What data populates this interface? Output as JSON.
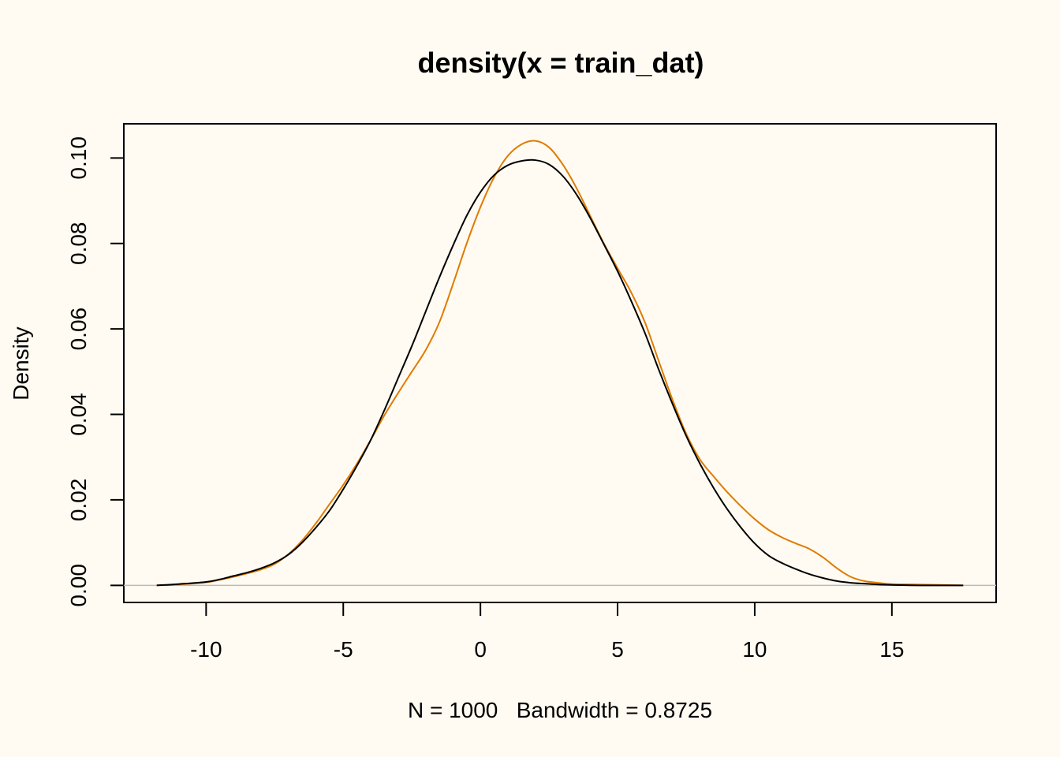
{
  "chart_data": {
    "type": "line",
    "title": "density(x = train_dat)",
    "xlabel": "N = 1000   Bandwidth = 0.8725",
    "ylabel": "Density",
    "xlim": [
      -13,
      18.8
    ],
    "ylim": [
      -0.004,
      0.108
    ],
    "x_ticks": [
      -10,
      -5,
      0,
      5,
      10,
      15
    ],
    "x_tick_labels": [
      "-10",
      "-5",
      "0",
      "5",
      "10",
      "15"
    ],
    "y_ticks": [
      0.0,
      0.02,
      0.04,
      0.06,
      0.08,
      0.1
    ],
    "y_tick_labels": [
      "0.00",
      "0.02",
      "0.04",
      "0.06",
      "0.08",
      "0.10"
    ],
    "zero_line": true,
    "grid": false,
    "series": [
      {
        "color": "#e07b00",
        "x": [
          -11.8,
          -11,
          -10,
          -9.5,
          -9,
          -8.5,
          -8,
          -7.5,
          -7,
          -6.5,
          -6,
          -5.5,
          -5,
          -4.5,
          -4,
          -3.5,
          -3,
          -2.5,
          -2,
          -1.5,
          -1,
          -0.5,
          0,
          0.5,
          1,
          1.5,
          2,
          2.5,
          3,
          3.5,
          4,
          4.5,
          5,
          5.5,
          6,
          6.5,
          7,
          7.5,
          8,
          8.5,
          9,
          9.5,
          10,
          10.5,
          11,
          11.5,
          12,
          12.5,
          13,
          13.5,
          14,
          14.5,
          15,
          16,
          17.6
        ],
        "y": [
          0.0,
          0.0002,
          0.0007,
          0.0013,
          0.002,
          0.0028,
          0.0037,
          0.005,
          0.0073,
          0.0105,
          0.0145,
          0.019,
          0.0235,
          0.0285,
          0.034,
          0.0398,
          0.045,
          0.05,
          0.055,
          0.0615,
          0.0705,
          0.08,
          0.0885,
          0.0955,
          0.1005,
          0.1032,
          0.104,
          0.1025,
          0.0985,
          0.093,
          0.0865,
          0.08,
          0.0742,
          0.0685,
          0.0615,
          0.0525,
          0.0435,
          0.0355,
          0.0295,
          0.0255,
          0.0218,
          0.0185,
          0.0155,
          0.013,
          0.0112,
          0.0098,
          0.0085,
          0.0065,
          0.004,
          0.002,
          0.001,
          0.0006,
          0.0003,
          0.0002,
          0.0
        ]
      },
      {
        "color": "#000000",
        "x": [
          -11.8,
          -11,
          -10,
          -9.5,
          -9,
          -8.5,
          -8,
          -7.5,
          -7,
          -6.5,
          -6,
          -5.5,
          -5,
          -4.5,
          -4,
          -3.5,
          -3,
          -2.5,
          -2,
          -1.5,
          -1,
          -0.5,
          0,
          0.5,
          1,
          1.5,
          2,
          2.5,
          3,
          3.5,
          4,
          4.5,
          5,
          5.5,
          6,
          6.5,
          7,
          7.5,
          8,
          8.5,
          9,
          9.5,
          10,
          10.5,
          11,
          11.5,
          12,
          12.5,
          13,
          13.5,
          14,
          14.5,
          15,
          16,
          17.6
        ],
        "y": [
          0.0,
          0.0003,
          0.0008,
          0.0014,
          0.0022,
          0.003,
          0.004,
          0.0053,
          0.0072,
          0.01,
          0.0135,
          0.0175,
          0.0225,
          0.028,
          0.034,
          0.041,
          0.0485,
          0.056,
          0.064,
          0.072,
          0.0795,
          0.0865,
          0.092,
          0.096,
          0.0983,
          0.0993,
          0.0995,
          0.0985,
          0.0958,
          0.0915,
          0.086,
          0.0798,
          0.0735,
          0.0665,
          0.059,
          0.0505,
          0.0425,
          0.035,
          0.0285,
          0.0228,
          0.0178,
          0.0135,
          0.0098,
          0.007,
          0.0052,
          0.0038,
          0.0026,
          0.0017,
          0.001,
          0.0006,
          0.0004,
          0.0002,
          0.0001,
          0.0,
          0.0
        ]
      }
    ]
  }
}
